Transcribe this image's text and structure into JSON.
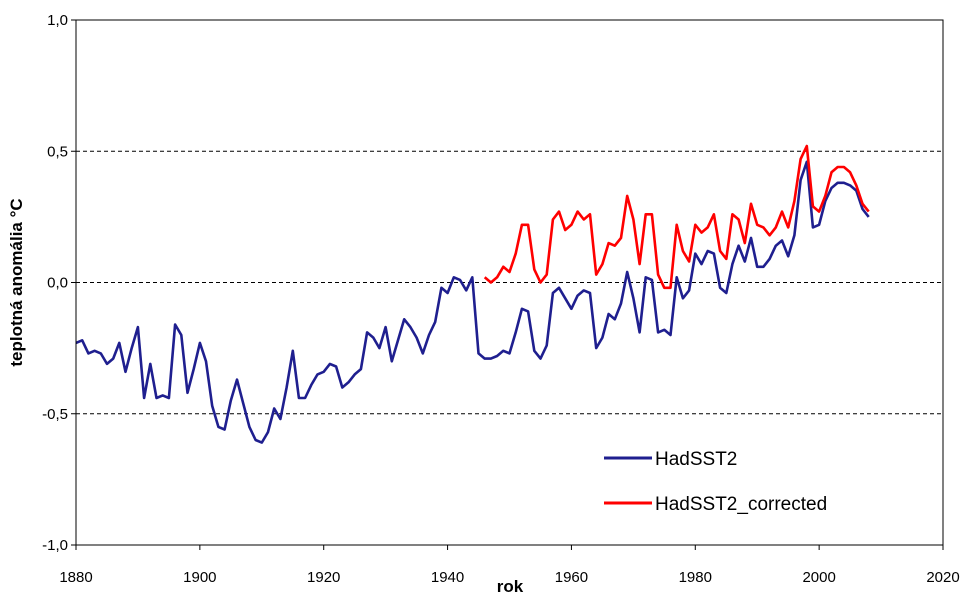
{
  "chart_data": {
    "type": "line",
    "xlabel": "rok",
    "ylabel": "teplotná anomália °C",
    "xlim": [
      1880,
      2020
    ],
    "ylim": [
      -1.0,
      1.0
    ],
    "x_ticks": [
      "1880",
      "1900",
      "1920",
      "1940",
      "1960",
      "1980",
      "2000",
      "2020"
    ],
    "y_ticks": [
      "1,0",
      "0,5",
      "0,0",
      "-0,5",
      "-1,0"
    ],
    "grid": "horizontal dashed at 0,5, 0,0 and -0,5",
    "legend_position": "bottom-right",
    "series": [
      {
        "name": "HadSST2",
        "color": "#1f1f8f",
        "x": [
          1880,
          1881,
          1882,
          1883,
          1884,
          1885,
          1886,
          1887,
          1888,
          1889,
          1890,
          1891,
          1892,
          1893,
          1894,
          1895,
          1896,
          1897,
          1898,
          1899,
          1900,
          1901,
          1902,
          1903,
          1904,
          1905,
          1906,
          1907,
          1908,
          1909,
          1910,
          1911,
          1912,
          1913,
          1914,
          1915,
          1916,
          1917,
          1918,
          1919,
          1920,
          1921,
          1922,
          1923,
          1924,
          1925,
          1926,
          1927,
          1928,
          1929,
          1930,
          1931,
          1932,
          1933,
          1934,
          1935,
          1936,
          1937,
          1938,
          1939,
          1940,
          1941,
          1942,
          1943,
          1944,
          1945,
          1946,
          1947,
          1948,
          1949,
          1950,
          1951,
          1952,
          1953,
          1954,
          1955,
          1956,
          1957,
          1958,
          1959,
          1960,
          1961,
          1962,
          1963,
          1964,
          1965,
          1966,
          1967,
          1968,
          1969,
          1970,
          1971,
          1972,
          1973,
          1974,
          1975,
          1976,
          1977,
          1978,
          1979,
          1980,
          1981,
          1982,
          1983,
          1984,
          1985,
          1986,
          1987,
          1988,
          1989,
          1990,
          1991,
          1992,
          1993,
          1994,
          1995,
          1996,
          1997,
          1998,
          1999,
          2000,
          2001,
          2002,
          2003,
          2004,
          2005,
          2006,
          2007,
          2008
        ],
        "values": [
          -0.23,
          -0.22,
          -0.27,
          -0.26,
          -0.27,
          -0.31,
          -0.29,
          -0.23,
          -0.34,
          -0.25,
          -0.17,
          -0.44,
          -0.31,
          -0.44,
          -0.43,
          -0.44,
          -0.16,
          -0.2,
          -0.42,
          -0.33,
          -0.23,
          -0.3,
          -0.47,
          -0.55,
          -0.56,
          -0.45,
          -0.37,
          -0.46,
          -0.55,
          -0.6,
          -0.61,
          -0.57,
          -0.48,
          -0.52,
          -0.4,
          -0.26,
          -0.44,
          -0.44,
          -0.39,
          -0.35,
          -0.34,
          -0.31,
          -0.32,
          -0.4,
          -0.38,
          -0.35,
          -0.33,
          -0.19,
          -0.21,
          -0.25,
          -0.17,
          -0.3,
          -0.22,
          -0.14,
          -0.17,
          -0.21,
          -0.27,
          -0.2,
          -0.15,
          -0.02,
          -0.04,
          0.02,
          0.01,
          -0.03,
          0.02,
          -0.27,
          -0.29,
          -0.29,
          -0.28,
          -0.26,
          -0.27,
          -0.19,
          -0.1,
          -0.11,
          -0.26,
          -0.29,
          -0.24,
          -0.04,
          -0.02,
          -0.06,
          -0.1,
          -0.05,
          -0.03,
          -0.04,
          -0.25,
          -0.21,
          -0.12,
          -0.14,
          -0.08,
          0.04,
          -0.06,
          -0.19,
          0.02,
          0.01,
          -0.19,
          -0.18,
          -0.2,
          0.02,
          -0.06,
          -0.03,
          0.11,
          0.07,
          0.12,
          0.11,
          -0.02,
          -0.04,
          0.07,
          0.14,
          0.08,
          0.17,
          0.06,
          0.06,
          0.09,
          0.14,
          0.16,
          0.1,
          0.18,
          0.39,
          0.46,
          0.21,
          0.22,
          0.31,
          0.36,
          0.38,
          0.38,
          0.37,
          0.35,
          0.28,
          0.25
        ]
      },
      {
        "name": "HadSST2_corrected",
        "color": "#ff0000",
        "x": [
          1946,
          1947,
          1948,
          1949,
          1950,
          1951,
          1952,
          1953,
          1954,
          1955,
          1956,
          1957,
          1958,
          1959,
          1960,
          1961,
          1962,
          1963,
          1964,
          1965,
          1966,
          1967,
          1968,
          1969,
          1970,
          1971,
          1972,
          1973,
          1974,
          1975,
          1976,
          1977,
          1978,
          1979,
          1980,
          1981,
          1982,
          1983,
          1984,
          1985,
          1986,
          1987,
          1988,
          1989,
          1990,
          1991,
          1992,
          1993,
          1994,
          1995,
          1996,
          1997,
          1998,
          1999,
          2000,
          2001,
          2002,
          2003,
          2004,
          2005,
          2006,
          2007,
          2008
        ],
        "values": [
          0.02,
          0.0,
          0.02,
          0.06,
          0.04,
          0.11,
          0.22,
          0.22,
          0.05,
          0.0,
          0.03,
          0.24,
          0.27,
          0.2,
          0.22,
          0.27,
          0.24,
          0.26,
          0.03,
          0.07,
          0.15,
          0.14,
          0.17,
          0.33,
          0.24,
          0.07,
          0.26,
          0.26,
          0.03,
          -0.02,
          -0.02,
          0.22,
          0.12,
          0.08,
          0.22,
          0.19,
          0.21,
          0.26,
          0.12,
          0.09,
          0.26,
          0.24,
          0.15,
          0.3,
          0.22,
          0.21,
          0.18,
          0.21,
          0.27,
          0.21,
          0.31,
          0.47,
          0.52,
          0.29,
          0.27,
          0.33,
          0.42,
          0.44,
          0.44,
          0.42,
          0.37,
          0.3,
          0.27
        ]
      }
    ]
  }
}
